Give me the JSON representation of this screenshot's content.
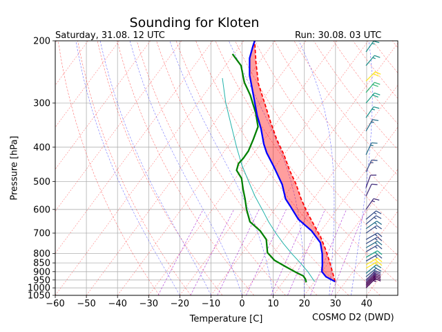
{
  "title": "Sounding for Kloten",
  "valid_time": "Saturday, 31.08. 12 UTC",
  "run_time": "Run: 30.08. 03 UTC",
  "credit": "COSMO D2 (DWD)",
  "chart_data": {
    "type": "skew-t log-p sounding",
    "xlabel": "Temperature [C]",
    "ylabel": "Pressure [hPa]",
    "xlim": [
      -60,
      50
    ],
    "ylim": [
      1050,
      200
    ],
    "y_scale": "log",
    "x_ticks": [
      -60,
      -50,
      -40,
      -30,
      -20,
      -10,
      0,
      10,
      20,
      30,
      40
    ],
    "y_ticks": [
      200,
      300,
      400,
      500,
      600,
      700,
      800,
      850,
      900,
      950,
      1000,
      1050
    ],
    "grid": true,
    "series": [
      {
        "color": "#0000ff",
        "points": [
          [
            26.6,
            960
          ],
          [
            22.5,
            930
          ],
          [
            20,
            900
          ],
          [
            18.5,
            860
          ],
          [
            15.8,
            800
          ],
          [
            12.6,
            745
          ],
          [
            7,
            690
          ],
          [
            0,
            640
          ],
          [
            -6,
            585
          ],
          [
            -9,
            560
          ],
          [
            -13.5,
            510
          ],
          [
            -20.3,
            455
          ],
          [
            -26,
            415
          ],
          [
            -29,
            392
          ],
          [
            -33.5,
            355
          ],
          [
            -38,
            325
          ],
          [
            -44,
            285
          ],
          [
            -50,
            250
          ],
          [
            -54,
            224
          ],
          [
            -55.8,
            207
          ],
          [
            -56.5,
            200
          ]
        ]
      },
      {
        "color": "#008000",
        "points": [
          [
            17.5,
            965
          ],
          [
            16.5,
            945
          ],
          [
            15,
            925
          ],
          [
            12,
            905
          ],
          [
            7,
            870
          ],
          [
            2,
            835
          ],
          [
            -2,
            795
          ],
          [
            -5.5,
            730
          ],
          [
            -9.5,
            690
          ],
          [
            -15,
            650
          ],
          [
            -19,
            600
          ],
          [
            -22,
            560
          ],
          [
            -25,
            525
          ],
          [
            -28,
            490
          ],
          [
            -31.5,
            465
          ],
          [
            -32.5,
            445
          ],
          [
            -32.2,
            430
          ],
          [
            -32.3,
            410
          ],
          [
            -33.5,
            380
          ],
          [
            -35,
            350
          ],
          [
            -39,
            320
          ],
          [
            -45,
            285
          ],
          [
            -50,
            262
          ],
          [
            -55,
            235
          ],
          [
            -60.5,
            218
          ]
        ]
      },
      {
        "color": "#ff0000",
        "points": [
          [
            26.6,
            960
          ],
          [
            20.5,
            850
          ],
          [
            16,
            780
          ],
          [
            11.5,
            720
          ],
          [
            6,
            660
          ],
          [
            1,
            610
          ],
          [
            -4,
            560
          ],
          [
            -9,
            510
          ],
          [
            -14.5,
            465
          ],
          [
            -20,
            420
          ],
          [
            -26,
            380
          ],
          [
            -32,
            340
          ],
          [
            -38.5,
            300
          ],
          [
            -45,
            265
          ],
          [
            -51,
            230
          ],
          [
            -56.5,
            200
          ]
        ]
      },
      {
        "color": "#20b2aa",
        "points": [
          [
            20,
            960
          ],
          [
            15.5,
            900
          ],
          [
            11,
            850
          ],
          [
            6,
            800
          ],
          [
            1,
            750
          ],
          [
            -4,
            700
          ],
          [
            -9,
            650
          ],
          [
            -14,
            600
          ],
          [
            -19.5,
            550
          ],
          [
            -25,
            500
          ],
          [
            -31,
            450
          ],
          [
            -37,
            400
          ],
          [
            -43.5,
            350
          ],
          [
            -51,
            300
          ],
          [
            -58,
            255
          ]
        ]
      }
    ],
    "dry_adiabats_theta_C": [
      -30,
      -20,
      -10,
      0,
      10,
      20,
      30,
      40,
      50,
      60,
      70,
      80,
      90,
      100,
      110,
      120,
      130,
      140,
      150,
      160,
      170,
      180
    ],
    "moist_adiabats_start_C": [
      -20,
      -10,
      0,
      10,
      20,
      28,
      35
    ],
    "mixing_ratio_lines_gkg": [
      0.4,
      1,
      2,
      4,
      7,
      10,
      16,
      24
    ],
    "wind_barbs": [
      {
        "p": 1000,
        "speed_kt": 15,
        "dir": 225,
        "color": "#440154"
      },
      {
        "p": 990,
        "speed_kt": 15,
        "dir": 225,
        "color": "#440154"
      },
      {
        "p": 980,
        "speed_kt": 15,
        "dir": 225,
        "color": "#440154"
      },
      {
        "p": 970,
        "speed_kt": 15,
        "dir": 225,
        "color": "#440154"
      },
      {
        "p": 960,
        "speed_kt": 15,
        "dir": 225,
        "color": "#46327e"
      },
      {
        "p": 950,
        "speed_kt": 15,
        "dir": 225,
        "color": "#46327e"
      },
      {
        "p": 930,
        "speed_kt": 15,
        "dir": 230,
        "color": "#365c8d"
      },
      {
        "p": 910,
        "speed_kt": 15,
        "dir": 230,
        "color": "#277f8e"
      },
      {
        "p": 880,
        "speed_kt": 15,
        "dir": 240,
        "color": "#fde725"
      },
      {
        "p": 860,
        "speed_kt": 15,
        "dir": 240,
        "color": "#fde725"
      },
      {
        "p": 840,
        "speed_kt": 15,
        "dir": 240,
        "color": "#3b528b"
      },
      {
        "p": 820,
        "speed_kt": 15,
        "dir": 240,
        "color": "#1fa187"
      },
      {
        "p": 790,
        "speed_kt": 15,
        "dir": 240,
        "color": "#3b528b"
      },
      {
        "p": 770,
        "speed_kt": 15,
        "dir": 240,
        "color": "#2c728e"
      },
      {
        "p": 750,
        "speed_kt": 15,
        "dir": 240,
        "color": "#3b528b"
      },
      {
        "p": 730,
        "speed_kt": 15,
        "dir": 240,
        "color": "#3b528b"
      },
      {
        "p": 700,
        "speed_kt": 15,
        "dir": 235,
        "color": "#3b528b"
      },
      {
        "p": 680,
        "speed_kt": 15,
        "dir": 235,
        "color": "#2c728e"
      },
      {
        "p": 660,
        "speed_kt": 15,
        "dir": 230,
        "color": "#3b528b"
      },
      {
        "p": 640,
        "speed_kt": 15,
        "dir": 230,
        "color": "#3b528b"
      },
      {
        "p": 600,
        "speed_kt": 15,
        "dir": 215,
        "color": "#46327e"
      },
      {
        "p": 550,
        "speed_kt": 10,
        "dir": 205,
        "color": "#46327e"
      },
      {
        "p": 520,
        "speed_kt": 10,
        "dir": 200,
        "color": "#46327e"
      },
      {
        "p": 470,
        "speed_kt": 15,
        "dir": 205,
        "color": "#3b528b"
      },
      {
        "p": 420,
        "speed_kt": 15,
        "dir": 205,
        "color": "#2c728e"
      },
      {
        "p": 360,
        "speed_kt": 15,
        "dir": 210,
        "color": "#2c728e"
      },
      {
        "p": 330,
        "speed_kt": 15,
        "dir": 215,
        "color": "#21918c"
      },
      {
        "p": 300,
        "speed_kt": 20,
        "dir": 220,
        "color": "#1fa187"
      },
      {
        "p": 280,
        "speed_kt": 20,
        "dir": 220,
        "color": "#35b779"
      },
      {
        "p": 260,
        "speed_kt": 20,
        "dir": 225,
        "color": "#fde725"
      },
      {
        "p": 235,
        "speed_kt": 15,
        "dir": 220,
        "color": "#21918c"
      },
      {
        "p": 215,
        "speed_kt": 15,
        "dir": 215,
        "color": "#21918c"
      }
    ]
  }
}
